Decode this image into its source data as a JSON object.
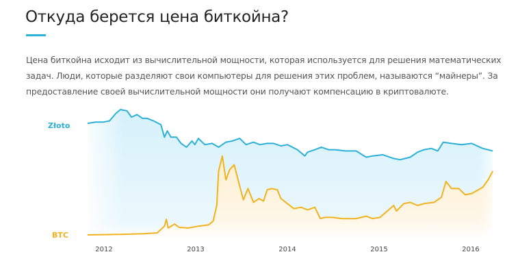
{
  "header": {
    "title": "Откуда берется цена биткойна?",
    "paragraph": "Цена биткойна исходит из вычислительной мощности, которая используется для решения математических задач. Люди, которые разделяют свои компьютеры для решения этих проблем, называются “майнеры”. За предоставление своей вычислительной мощности они получают компенсацию в криптовалюте."
  },
  "colors": {
    "gold": "#2bb0d8",
    "btc": "#f2b21e",
    "accent": "#2bb3d9"
  },
  "chart_data": {
    "type": "line",
    "title": "",
    "xlabel": "",
    "ylabel": "",
    "xlim": [
      2011.8,
      2016.25
    ],
    "ylim": [
      0,
      100
    ],
    "y_units": "relative index (no axis shown)",
    "grid": false,
    "x_ticks": [
      "2012",
      "2013",
      "2014",
      "2015",
      "2016"
    ],
    "x_tick_values": [
      2012,
      2013,
      2014,
      2015,
      2016
    ],
    "series": [
      {
        "name": "Złoto",
        "color": "#2bb0d8",
        "points": [
          [
            2011.82,
            89
          ],
          [
            2011.91,
            90
          ],
          [
            2011.99,
            90
          ],
          [
            2012.06,
            91
          ],
          [
            2012.13,
            97
          ],
          [
            2012.18,
            100
          ],
          [
            2012.25,
            99
          ],
          [
            2012.3,
            94
          ],
          [
            2012.36,
            96
          ],
          [
            2012.42,
            93
          ],
          [
            2012.47,
            93
          ],
          [
            2012.54,
            91
          ],
          [
            2012.62,
            88
          ],
          [
            2012.66,
            78
          ],
          [
            2012.69,
            83
          ],
          [
            2012.73,
            78
          ],
          [
            2012.79,
            78
          ],
          [
            2012.84,
            73
          ],
          [
            2012.9,
            70
          ],
          [
            2012.96,
            75
          ],
          [
            2012.99,
            72
          ],
          [
            2013.03,
            77
          ],
          [
            2013.1,
            72
          ],
          [
            2013.18,
            73
          ],
          [
            2013.25,
            70
          ],
          [
            2013.33,
            74
          ],
          [
            2013.4,
            75
          ],
          [
            2013.48,
            77
          ],
          [
            2013.55,
            72
          ],
          [
            2013.63,
            74
          ],
          [
            2013.7,
            72
          ],
          [
            2013.78,
            73
          ],
          [
            2013.85,
            73
          ],
          [
            2013.93,
            71
          ],
          [
            2014.0,
            72
          ],
          [
            2014.11,
            68
          ],
          [
            2014.19,
            63
          ],
          [
            2014.22,
            66
          ],
          [
            2014.3,
            68
          ],
          [
            2014.37,
            70
          ],
          [
            2014.45,
            68
          ],
          [
            2014.52,
            68
          ],
          [
            2014.63,
            67
          ],
          [
            2014.75,
            67
          ],
          [
            2014.86,
            62
          ],
          [
            2014.93,
            63
          ],
          [
            2015.04,
            64
          ],
          [
            2015.16,
            61
          ],
          [
            2015.23,
            60
          ],
          [
            2015.34,
            62
          ],
          [
            2015.42,
            66
          ],
          [
            2015.49,
            68
          ],
          [
            2015.57,
            69
          ],
          [
            2015.64,
            67
          ],
          [
            2015.7,
            74
          ],
          [
            2015.79,
            73
          ],
          [
            2015.9,
            72
          ],
          [
            2016.01,
            73
          ],
          [
            2016.13,
            69
          ],
          [
            2016.24,
            67
          ]
        ]
      },
      {
        "name": "BTC",
        "color": "#f2b21e",
        "points": [
          [
            2011.82,
            0
          ],
          [
            2012.21,
            0.5
          ],
          [
            2012.43,
            1
          ],
          [
            2012.58,
            1.6
          ],
          [
            2012.66,
            7
          ],
          [
            2012.68,
            12.5
          ],
          [
            2012.7,
            5.5
          ],
          [
            2012.77,
            8.7
          ],
          [
            2012.82,
            6
          ],
          [
            2012.92,
            5.5
          ],
          [
            2013.03,
            7
          ],
          [
            2013.14,
            8
          ],
          [
            2013.19,
            11
          ],
          [
            2013.23,
            23.5
          ],
          [
            2013.25,
            51
          ],
          [
            2013.29,
            63
          ],
          [
            2013.33,
            44
          ],
          [
            2013.37,
            52
          ],
          [
            2013.42,
            56
          ],
          [
            2013.48,
            39
          ],
          [
            2013.52,
            28
          ],
          [
            2013.57,
            37
          ],
          [
            2013.63,
            26
          ],
          [
            2013.69,
            29
          ],
          [
            2013.74,
            27
          ],
          [
            2013.78,
            36
          ],
          [
            2013.83,
            37
          ],
          [
            2013.89,
            36
          ],
          [
            2013.93,
            29
          ],
          [
            2014.0,
            25
          ],
          [
            2014.07,
            21
          ],
          [
            2014.15,
            22
          ],
          [
            2014.22,
            20
          ],
          [
            2014.3,
            22
          ],
          [
            2014.36,
            13
          ],
          [
            2014.41,
            14
          ],
          [
            2014.49,
            14
          ],
          [
            2014.6,
            13
          ],
          [
            2014.75,
            13
          ],
          [
            2014.86,
            15
          ],
          [
            2014.93,
            13
          ],
          [
            2015.01,
            14
          ],
          [
            2015.12,
            21
          ],
          [
            2015.16,
            23.5
          ],
          [
            2015.19,
            19
          ],
          [
            2015.27,
            25
          ],
          [
            2015.34,
            26
          ],
          [
            2015.42,
            23.5
          ],
          [
            2015.49,
            25
          ],
          [
            2015.6,
            26
          ],
          [
            2015.68,
            30
          ],
          [
            2015.73,
            42.6
          ],
          [
            2015.79,
            37
          ],
          [
            2015.87,
            37
          ],
          [
            2015.94,
            32
          ],
          [
            2016.01,
            33
          ],
          [
            2016.13,
            38
          ],
          [
            2016.19,
            44
          ],
          [
            2016.24,
            51
          ]
        ]
      }
    ],
    "legend": "inline-left"
  }
}
